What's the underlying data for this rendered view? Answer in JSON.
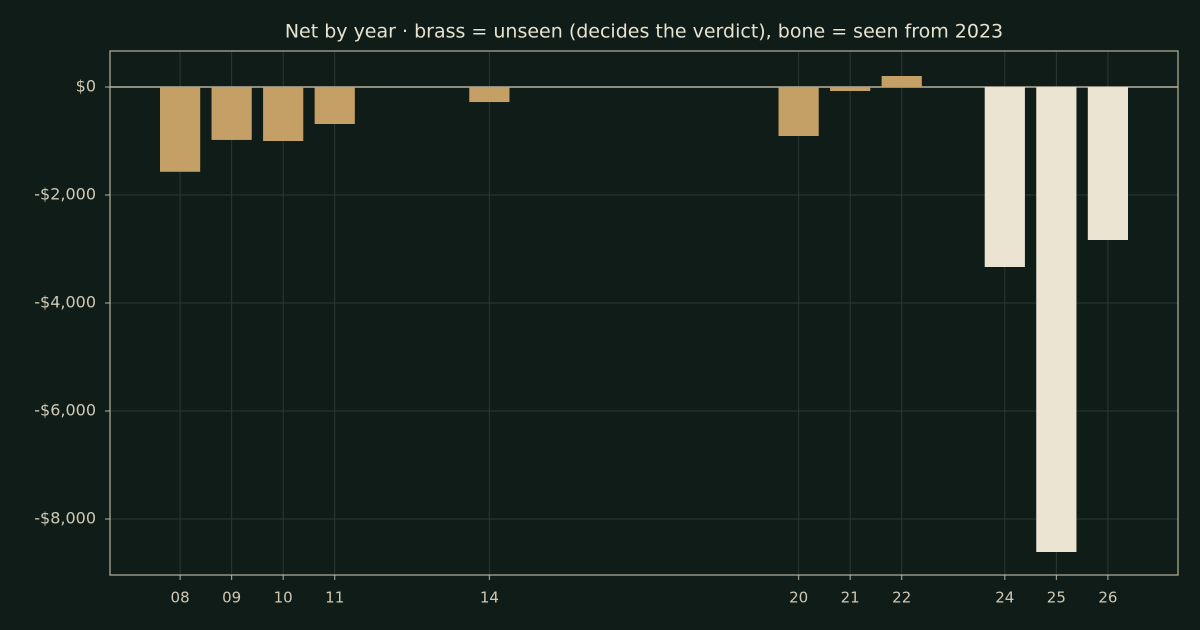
{
  "chart_data": {
    "type": "bar",
    "title": "Net by year  ·  brass = unseen (decides the verdict), bone = seen from 2023",
    "x": [
      8,
      9,
      10,
      11,
      14,
      20,
      21,
      22,
      24,
      25,
      26
    ],
    "values": [
      -1570,
      -980,
      -1000,
      -685,
      -278,
      -907,
      -74,
      204,
      -3333,
      -8611,
      -2833
    ],
    "colors": [
      "#c4a066",
      "#c4a066",
      "#c4a066",
      "#c4a066",
      "#c4a066",
      "#c4a066",
      "#c4a066",
      "#c4a066",
      "#ebe4d3",
      "#ebe4d3",
      "#ebe4d3"
    ],
    "xlim": [
      6.64,
      27.36
    ],
    "xticks": [
      {
        "value": 8,
        "label": "08"
      },
      {
        "value": 9,
        "label": "09"
      },
      {
        "value": 10,
        "label": "10"
      },
      {
        "value": 11,
        "label": "11"
      },
      {
        "value": 14,
        "label": "14"
      },
      {
        "value": 20,
        "label": "20"
      },
      {
        "value": 21,
        "label": "21"
      },
      {
        "value": 22,
        "label": "22"
      },
      {
        "value": 24,
        "label": "24"
      },
      {
        "value": 25,
        "label": "25"
      },
      {
        "value": 26,
        "label": "26"
      }
    ],
    "ylim": [
      -9037,
      667
    ],
    "yticks": [
      {
        "value": 0,
        "label": "$0"
      },
      {
        "value": -2000,
        "label": "-$2,000"
      },
      {
        "value": -4000,
        "label": "-$4,000"
      },
      {
        "value": -6000,
        "label": "-$6,000"
      },
      {
        "value": -8000,
        "label": "-$8,000"
      }
    ],
    "grid": true
  }
}
